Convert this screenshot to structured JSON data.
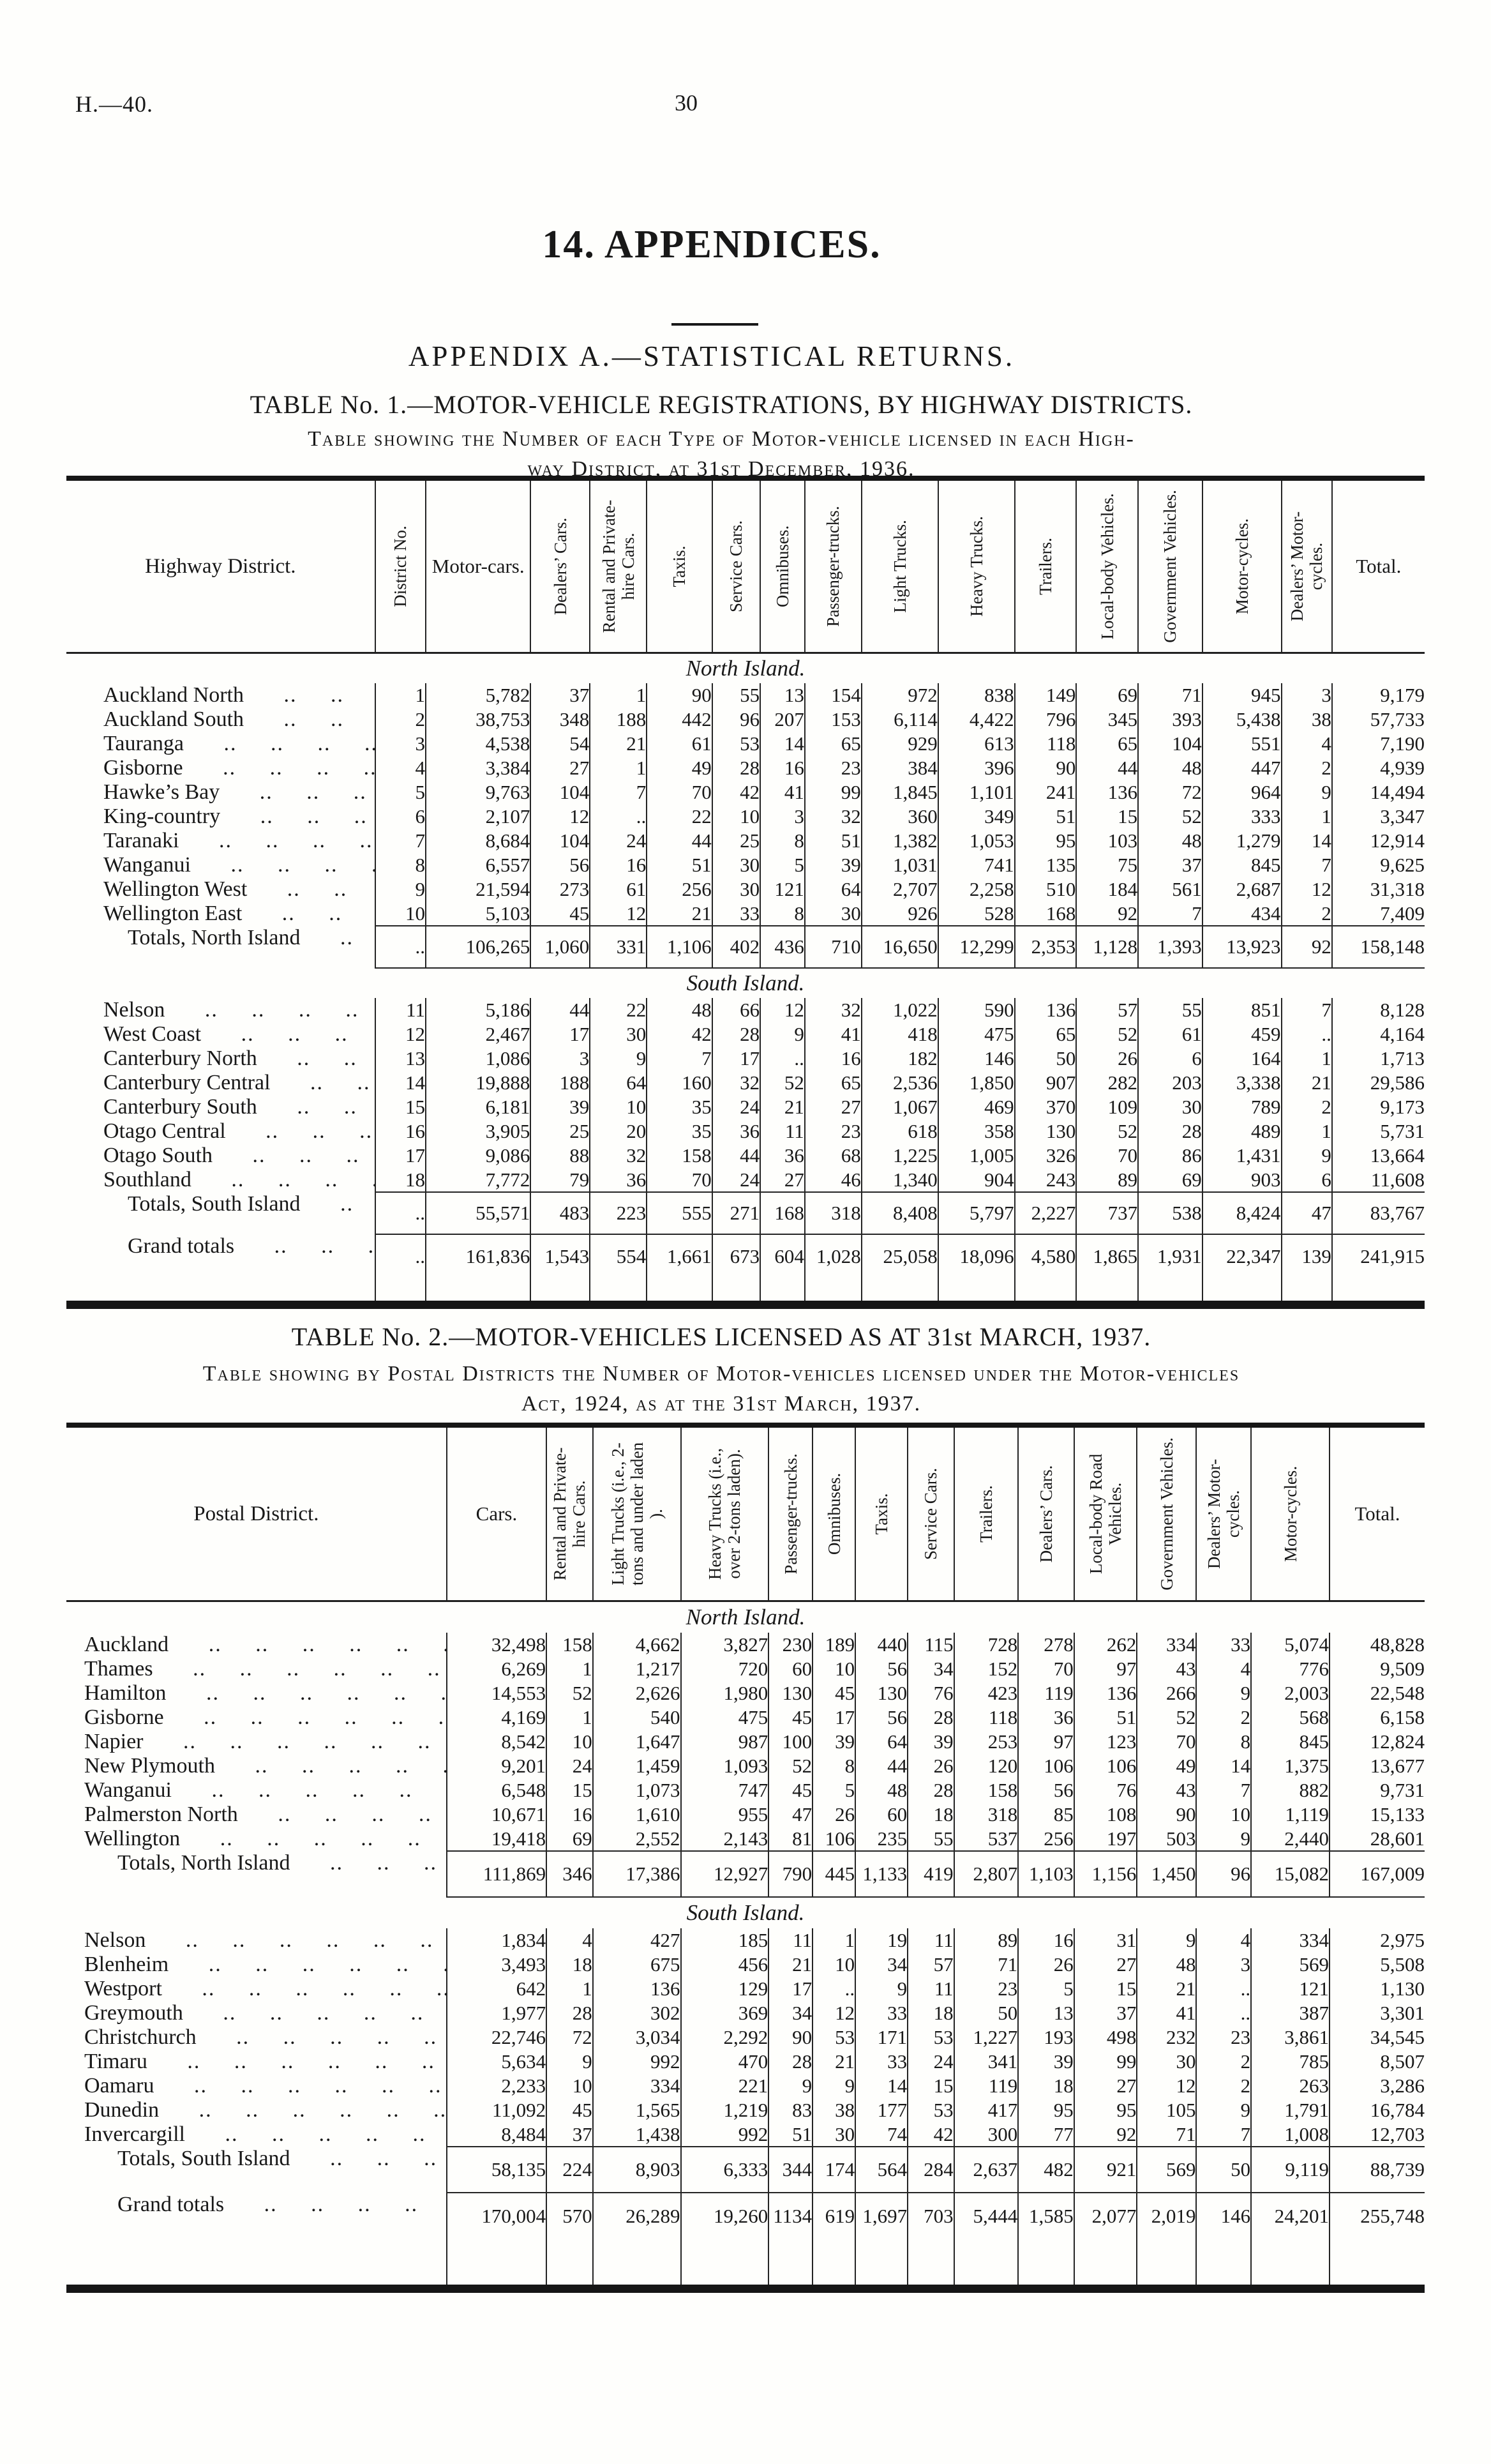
{
  "page": {
    "doc_ref": "H.—40.",
    "page_number": "30",
    "main_title": "14. APPENDICES.",
    "appendix_heading": "APPENDIX A.—STATISTICAL RETURNS."
  },
  "table1": {
    "title": "TABLE No. 1.—MOTOR-VEHICLE REGISTRATIONS, BY HIGHWAY DISTRICTS.",
    "subtitle_line1": "Table showing the Number of each Type of Motor-vehicle licensed in each High-",
    "subtitle_line2": "way District, at 31st December, 1936.",
    "row_header": "Highway District.",
    "columns": [
      "District No.",
      "Motor-cars.",
      "Dealers’ Cars.",
      "Rental and Private-hire Cars.",
      "Taxis.",
      "Service Cars.",
      "Omnibuses.",
      "Passenger-trucks.",
      "Light Trucks.",
      "Heavy Trucks.",
      "Trailers.",
      "Local-body Vehicles.",
      "Government Vehicles.",
      "Motor-cycles.",
      "Dealers’ Motor-cycles.",
      "Total."
    ],
    "sections": [
      {
        "label": "North Island.",
        "rows": [
          [
            "Auckland North",
            "1",
            "5,782",
            "37",
            "1",
            "90",
            "55",
            "13",
            "154",
            "972",
            "838",
            "149",
            "69",
            "71",
            "945",
            "3",
            "9,179"
          ],
          [
            "Auckland South",
            "2",
            "38,753",
            "348",
            "188",
            "442",
            "96",
            "207",
            "153",
            "6,114",
            "4,422",
            "796",
            "345",
            "393",
            "5,438",
            "38",
            "57,733"
          ],
          [
            "Tauranga",
            "3",
            "4,538",
            "54",
            "21",
            "61",
            "53",
            "14",
            "65",
            "929",
            "613",
            "118",
            "65",
            "104",
            "551",
            "4",
            "7,190"
          ],
          [
            "Gisborne",
            "4",
            "3,384",
            "27",
            "1",
            "49",
            "28",
            "16",
            "23",
            "384",
            "396",
            "90",
            "44",
            "48",
            "447",
            "2",
            "4,939"
          ],
          [
            "Hawke’s Bay",
            "5",
            "9,763",
            "104",
            "7",
            "70",
            "42",
            "41",
            "99",
            "1,845",
            "1,101",
            "241",
            "136",
            "72",
            "964",
            "9",
            "14,494"
          ],
          [
            "King-country",
            "6",
            "2,107",
            "12",
            "..",
            "22",
            "10",
            "3",
            "32",
            "360",
            "349",
            "51",
            "15",
            "52",
            "333",
            "1",
            "3,347"
          ],
          [
            "Taranaki",
            "7",
            "8,684",
            "104",
            "24",
            "44",
            "25",
            "8",
            "51",
            "1,382",
            "1,053",
            "95",
            "103",
            "48",
            "1,279",
            "14",
            "12,914"
          ],
          [
            "Wanganui",
            "8",
            "6,557",
            "56",
            "16",
            "51",
            "30",
            "5",
            "39",
            "1,031",
            "741",
            "135",
            "75",
            "37",
            "845",
            "7",
            "9,625"
          ],
          [
            "Wellington West",
            "9",
            "21,594",
            "273",
            "61",
            "256",
            "30",
            "121",
            "64",
            "2,707",
            "2,258",
            "510",
            "184",
            "561",
            "2,687",
            "12",
            "31,318"
          ],
          [
            "Wellington East",
            "10",
            "5,103",
            "45",
            "12",
            "21",
            "33",
            "8",
            "30",
            "926",
            "528",
            "168",
            "92",
            "7",
            "434",
            "2",
            "7,409"
          ]
        ],
        "totals": [
          "Totals, North Island",
          "..",
          "106,265",
          "1,060",
          "331",
          "1,106",
          "402",
          "436",
          "710",
          "16,650",
          "12,299",
          "2,353",
          "1,128",
          "1,393",
          "13,923",
          "92",
          "158,148"
        ]
      },
      {
        "label": "South Island.",
        "rows": [
          [
            "Nelson",
            "11",
            "5,186",
            "44",
            "22",
            "48",
            "66",
            "12",
            "32",
            "1,022",
            "590",
            "136",
            "57",
            "55",
            "851",
            "7",
            "8,128"
          ],
          [
            "West Coast",
            "12",
            "2,467",
            "17",
            "30",
            "42",
            "28",
            "9",
            "41",
            "418",
            "475",
            "65",
            "52",
            "61",
            "459",
            "..",
            "4,164"
          ],
          [
            "Canterbury North",
            "13",
            "1,086",
            "3",
            "9",
            "7",
            "17",
            "..",
            "16",
            "182",
            "146",
            "50",
            "26",
            "6",
            "164",
            "1",
            "1,713"
          ],
          [
            "Canterbury Central",
            "14",
            "19,888",
            "188",
            "64",
            "160",
            "32",
            "52",
            "65",
            "2,536",
            "1,850",
            "907",
            "282",
            "203",
            "3,338",
            "21",
            "29,586"
          ],
          [
            "Canterbury South",
            "15",
            "6,181",
            "39",
            "10",
            "35",
            "24",
            "21",
            "27",
            "1,067",
            "469",
            "370",
            "109",
            "30",
            "789",
            "2",
            "9,173"
          ],
          [
            "Otago Central",
            "16",
            "3,905",
            "25",
            "20",
            "35",
            "36",
            "11",
            "23",
            "618",
            "358",
            "130",
            "52",
            "28",
            "489",
            "1",
            "5,731"
          ],
          [
            "Otago South",
            "17",
            "9,086",
            "88",
            "32",
            "158",
            "44",
            "36",
            "68",
            "1,225",
            "1,005",
            "326",
            "70",
            "86",
            "1,431",
            "9",
            "13,664"
          ],
          [
            "Southland",
            "18",
            "7,772",
            "79",
            "36",
            "70",
            "24",
            "27",
            "46",
            "1,340",
            "904",
            "243",
            "89",
            "69",
            "903",
            "6",
            "11,608"
          ]
        ],
        "totals": [
          "Totals, South Island",
          "..",
          "55,571",
          "483",
          "223",
          "555",
          "271",
          "168",
          "318",
          "8,408",
          "5,797",
          "2,227",
          "737",
          "538",
          "8,424",
          "47",
          "83,767"
        ]
      }
    ],
    "grand": [
      "Grand totals",
      "..",
      "161,836",
      "1,543",
      "554",
      "1,661",
      "673",
      "604",
      "1,028",
      "25,058",
      "18,096",
      "4,580",
      "1,865",
      "1,931",
      "22,347",
      "139",
      "241,915"
    ]
  },
  "table2": {
    "title": "TABLE No. 2.—MOTOR-VEHICLES LICENSED AS AT 31st MARCH, 1937.",
    "subtitle_line1": "Table showing by Postal Districts the Number of Motor-vehicles licensed under the Motor-vehicles",
    "subtitle_line2": "Act, 1924, as at the 31st March, 1937.",
    "row_header": "Postal District.",
    "columns": [
      "Cars.",
      "Rental and Private-hire Cars.",
      "Light Trucks (i.e., 2-tons and under laden ).",
      "Heavy Trucks (i.e., over 2-tons laden).",
      "Passenger-trucks.",
      "Omnibuses.",
      "Taxis.",
      "Service Cars.",
      "Trailers.",
      "Dealers’ Cars.",
      "Local-body Road Vehicles.",
      "Government Vehicles.",
      "Dealers’ Motor-cycles.",
      "Motor-cycles.",
      "Total."
    ],
    "sections": [
      {
        "label": "North Island.",
        "rows": [
          [
            "Auckland",
            "32,498",
            "158",
            "4,662",
            "3,827",
            "230",
            "189",
            "440",
            "115",
            "728",
            "278",
            "262",
            "334",
            "33",
            "5,074",
            "48,828"
          ],
          [
            "Thames",
            "6,269",
            "1",
            "1,217",
            "720",
            "60",
            "10",
            "56",
            "34",
            "152",
            "70",
            "97",
            "43",
            "4",
            "776",
            "9,509"
          ],
          [
            "Hamilton",
            "14,553",
            "52",
            "2,626",
            "1,980",
            "130",
            "45",
            "130",
            "76",
            "423",
            "119",
            "136",
            "266",
            "9",
            "2,003",
            "22,548"
          ],
          [
            "Gisborne",
            "4,169",
            "1",
            "540",
            "475",
            "45",
            "17",
            "56",
            "28",
            "118",
            "36",
            "51",
            "52",
            "2",
            "568",
            "6,158"
          ],
          [
            "Napier",
            "8,542",
            "10",
            "1,647",
            "987",
            "100",
            "39",
            "64",
            "39",
            "253",
            "97",
            "123",
            "70",
            "8",
            "845",
            "12,824"
          ],
          [
            "New Plymouth",
            "9,201",
            "24",
            "1,459",
            "1,093",
            "52",
            "8",
            "44",
            "26",
            "120",
            "106",
            "106",
            "49",
            "14",
            "1,375",
            "13,677"
          ],
          [
            "Wanganui",
            "6,548",
            "15",
            "1,073",
            "747",
            "45",
            "5",
            "48",
            "28",
            "158",
            "56",
            "76",
            "43",
            "7",
            "882",
            "9,731"
          ],
          [
            "Palmerston North",
            "10,671",
            "16",
            "1,610",
            "955",
            "47",
            "26",
            "60",
            "18",
            "318",
            "85",
            "108",
            "90",
            "10",
            "1,119",
            "15,133"
          ],
          [
            "Wellington",
            "19,418",
            "69",
            "2,552",
            "2,143",
            "81",
            "106",
            "235",
            "55",
            "537",
            "256",
            "197",
            "503",
            "9",
            "2,440",
            "28,601"
          ]
        ],
        "totals": [
          "Totals, North Island",
          "111,869",
          "346",
          "17,386",
          "12,927",
          "790",
          "445",
          "1,133",
          "419",
          "2,807",
          "1,103",
          "1,156",
          "1,450",
          "96",
          "15,082",
          "167,009"
        ]
      },
      {
        "label": "South Island.",
        "rows": [
          [
            "Nelson",
            "1,834",
            "4",
            "427",
            "185",
            "11",
            "1",
            "19",
            "11",
            "89",
            "16",
            "31",
            "9",
            "4",
            "334",
            "2,975"
          ],
          [
            "Blenheim",
            "3,493",
            "18",
            "675",
            "456",
            "21",
            "10",
            "34",
            "57",
            "71",
            "26",
            "27",
            "48",
            "3",
            "569",
            "5,508"
          ],
          [
            "Westport",
            "642",
            "1",
            "136",
            "129",
            "17",
            "..",
            "9",
            "11",
            "23",
            "5",
            "15",
            "21",
            "..",
            "121",
            "1,130"
          ],
          [
            "Greymouth",
            "1,977",
            "28",
            "302",
            "369",
            "34",
            "12",
            "33",
            "18",
            "50",
            "13",
            "37",
            "41",
            "..",
            "387",
            "3,301"
          ],
          [
            "Christchurch",
            "22,746",
            "72",
            "3,034",
            "2,292",
            "90",
            "53",
            "171",
            "53",
            "1,227",
            "193",
            "498",
            "232",
            "23",
            "3,861",
            "34,545"
          ],
          [
            "Timaru",
            "5,634",
            "9",
            "992",
            "470",
            "28",
            "21",
            "33",
            "24",
            "341",
            "39",
            "99",
            "30",
            "2",
            "785",
            "8,507"
          ],
          [
            "Oamaru",
            "2,233",
            "10",
            "334",
            "221",
            "9",
            "9",
            "14",
            "15",
            "119",
            "18",
            "27",
            "12",
            "2",
            "263",
            "3,286"
          ],
          [
            "Dunedin",
            "11,092",
            "45",
            "1,565",
            "1,219",
            "83",
            "38",
            "177",
            "53",
            "417",
            "95",
            "95",
            "105",
            "9",
            "1,791",
            "16,784"
          ],
          [
            "Invercargill",
            "8,484",
            "37",
            "1,438",
            "992",
            "51",
            "30",
            "74",
            "42",
            "300",
            "77",
            "92",
            "71",
            "7",
            "1,008",
            "12,703"
          ]
        ],
        "totals": [
          "Totals, South Island",
          "58,135",
          "224",
          "8,903",
          "6,333",
          "344",
          "174",
          "564",
          "284",
          "2,637",
          "482",
          "921",
          "569",
          "50",
          "9,119",
          "88,739"
        ]
      }
    ],
    "grand": [
      "Grand totals",
      "170,004",
      "570",
      "26,289",
      "19,260",
      "1134",
      "619",
      "1,697",
      "703",
      "5,444",
      "1,585",
      "2,077",
      "2,019",
      "146",
      "24,201",
      "255,748"
    ]
  }
}
